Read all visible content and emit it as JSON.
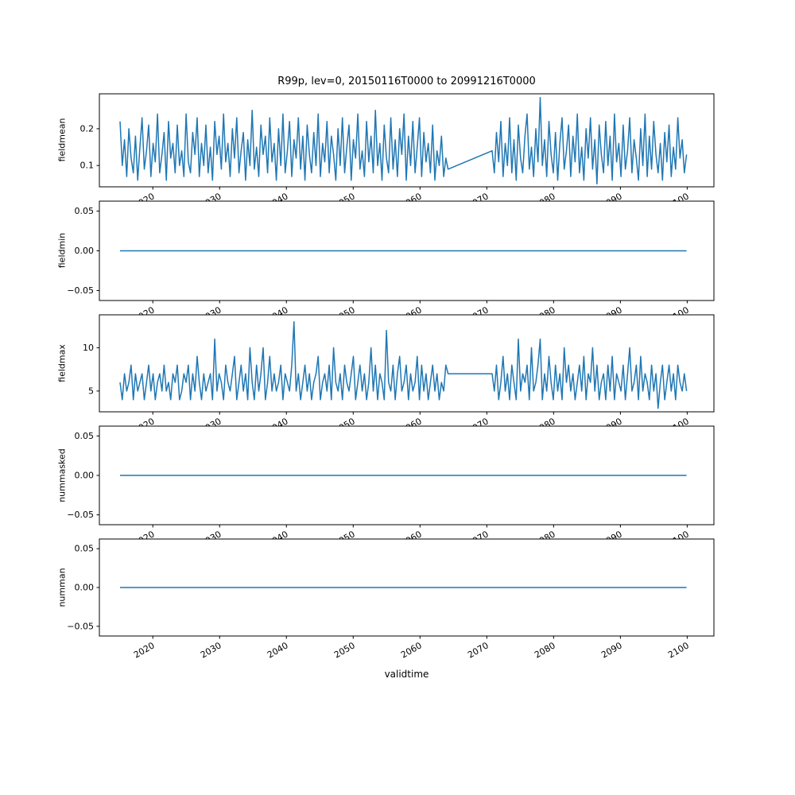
{
  "figure": {
    "background": "#ffffff"
  },
  "chart_data": {
    "type": "line",
    "title": "R99p, lev=0, 20150116T0000 to 20991216T0000",
    "xlabel": "validtime",
    "line_color": "#1f77b4",
    "grid": false,
    "legend": "none",
    "xlim": [
      2012,
      2104
    ],
    "xticks": [
      2020,
      2030,
      2040,
      2050,
      2060,
      2070,
      2080,
      2090,
      2100
    ],
    "xtick_labels": [
      "2020",
      "2030",
      "2040",
      "2050",
      "2060",
      "2070",
      "2080",
      "2090",
      "2100"
    ],
    "subplots": [
      {
        "ylabel": "fieldmean",
        "ylim": [
          0.042,
          0.295
        ],
        "yticks": [
          0.1,
          0.2
        ],
        "ytick_labels": [
          "0.1",
          "0.2"
        ],
        "segments": [
          {
            "x_start": 2015.1,
            "x_end": 2064.2,
            "values": [
              0.22,
              0.1,
              0.17,
              0.07,
              0.2,
              0.12,
              0.08,
              0.18,
              0.06,
              0.15,
              0.23,
              0.09,
              0.14,
              0.21,
              0.07,
              0.16,
              0.11,
              0.24,
              0.08,
              0.13,
              0.19,
              0.06,
              0.22,
              0.12,
              0.16,
              0.08,
              0.21,
              0.1,
              0.14,
              0.07,
              0.24,
              0.11,
              0.08,
              0.19,
              0.13,
              0.23,
              0.07,
              0.16,
              0.1,
              0.21,
              0.08,
              0.15,
              0.06,
              0.22,
              0.13,
              0.18,
              0.09,
              0.24,
              0.11,
              0.16,
              0.07,
              0.2,
              0.12,
              0.23,
              0.08,
              0.14,
              0.19,
              0.06,
              0.17,
              0.1,
              0.25,
              0.09,
              0.15,
              0.07,
              0.21,
              0.13,
              0.18,
              0.08,
              0.23,
              0.11,
              0.16,
              0.06,
              0.2,
              0.1,
              0.24,
              0.08,
              0.14,
              0.22,
              0.07,
              0.17,
              0.12,
              0.23,
              0.09,
              0.18,
              0.06,
              0.21,
              0.13,
              0.08,
              0.19,
              0.1,
              0.24,
              0.07,
              0.16,
              0.11,
              0.22,
              0.08,
              0.18,
              0.13,
              0.06,
              0.2,
              0.1,
              0.23,
              0.08,
              0.15,
              0.21,
              0.06,
              0.17,
              0.12,
              0.24,
              0.09,
              0.14,
              0.07,
              0.22,
              0.11,
              0.18,
              0.08,
              0.25,
              0.1,
              0.16,
              0.06,
              0.21,
              0.12,
              0.08,
              0.23,
              0.09,
              0.17,
              0.07,
              0.2,
              0.13,
              0.24,
              0.06,
              0.18,
              0.1,
              0.22,
              0.08,
              0.15,
              0.23,
              0.07,
              0.19,
              0.11,
              0.16,
              0.08,
              0.21,
              0.06,
              0.14,
              0.1,
              0.18,
              0.07,
              0.12,
              0.09
            ]
          },
          {
            "x_start": 2070.8,
            "x_end": 2099.9,
            "values": [
              0.14,
              0.08,
              0.19,
              0.11,
              0.22,
              0.07,
              0.16,
              0.1,
              0.23,
              0.08,
              0.17,
              0.06,
              0.21,
              0.12,
              0.08,
              0.18,
              0.24,
              0.09,
              0.15,
              0.07,
              0.2,
              0.11,
              0.285,
              0.1,
              0.17,
              0.07,
              0.22,
              0.13,
              0.08,
              0.19,
              0.06,
              0.16,
              0.23,
              0.09,
              0.14,
              0.21,
              0.07,
              0.18,
              0.11,
              0.24,
              0.08,
              0.15,
              0.06,
              0.2,
              0.12,
              0.23,
              0.09,
              0.17,
              0.05,
              0.21,
              0.13,
              0.08,
              0.22,
              0.1,
              0.18,
              0.06,
              0.24,
              0.11,
              0.16,
              0.07,
              0.21,
              0.09,
              0.14,
              0.23,
              0.08,
              0.17,
              0.12,
              0.06,
              0.2,
              0.1,
              0.24,
              0.07,
              0.18,
              0.09,
              0.22,
              0.13,
              0.08,
              0.16,
              0.06,
              0.19,
              0.11,
              0.21,
              0.07,
              0.15,
              0.09,
              0.23,
              0.12,
              0.17,
              0.08,
              0.13
            ]
          }
        ]
      },
      {
        "ylabel": "fieldmin",
        "ylim": [
          -0.0625,
          0.0625
        ],
        "yticks": [
          -0.05,
          0.0,
          0.05
        ],
        "ytick_labels": [
          "−0.05",
          "0.00",
          "0.05"
        ],
        "segments": [
          {
            "x_start": 2015.1,
            "x_end": 2099.9,
            "values": [
              0,
              0
            ]
          }
        ]
      },
      {
        "ylabel": "fieldmax",
        "ylim": [
          2.6,
          13.8
        ],
        "yticks": [
          5,
          10
        ],
        "ytick_labels": [
          "5",
          "10"
        ],
        "segments": [
          {
            "x_start": 2015.1,
            "x_end": 2064.2,
            "values": [
              6,
              4,
              7,
              5,
              6,
              8,
              4,
              7,
              5,
              6,
              7,
              4,
              6,
              8,
              5,
              7,
              4,
              6,
              7,
              5,
              8,
              5,
              6,
              4,
              7,
              6,
              8,
              4,
              5,
              7,
              6,
              8,
              4,
              7,
              5,
              9,
              6,
              4,
              7,
              5,
              6,
              7,
              4,
              11,
              5,
              7,
              6,
              4,
              8,
              6,
              5,
              7,
              9,
              4,
              6,
              8,
              5,
              7,
              4,
              10,
              6,
              4,
              8,
              5,
              7,
              10,
              4,
              6,
              9,
              5,
              7,
              5,
              6,
              8,
              4,
              7,
              6,
              5,
              8,
              13,
              5,
              7,
              4,
              6,
              8,
              5,
              7,
              4,
              6,
              7,
              9,
              4,
              6,
              7,
              5,
              8,
              4,
              10,
              6,
              5,
              7,
              4,
              8,
              6,
              5,
              7,
              9,
              4,
              6,
              8,
              5,
              7,
              4,
              6,
              10,
              5,
              8,
              4,
              7,
              6,
              4,
              12,
              6,
              5,
              8,
              4,
              7,
              9,
              5,
              6,
              8,
              4,
              7,
              5,
              6,
              9,
              4,
              8,
              5,
              7,
              4,
              6,
              8,
              5,
              7,
              4,
              6,
              5,
              8,
              7
            ]
          },
          {
            "x_start": 2070.8,
            "x_end": 2099.9,
            "values": [
              7,
              5,
              8,
              4,
              6,
              9,
              5,
              7,
              4,
              8,
              6,
              4,
              11,
              5,
              7,
              6,
              8,
              4,
              10,
              5,
              6,
              8,
              11,
              4,
              7,
              5,
              9,
              6,
              4,
              8,
              5,
              7,
              4,
              10,
              6,
              8,
              5,
              7,
              4,
              6,
              8,
              5,
              9,
              4,
              7,
              6,
              10,
              5,
              8,
              4,
              6,
              7,
              4,
              8,
              5,
              9,
              4,
              7,
              6,
              5,
              8,
              4,
              7,
              10,
              5,
              6,
              8,
              4,
              9,
              5,
              7,
              6,
              4,
              8,
              5,
              7,
              3,
              6,
              8,
              4,
              6,
              8,
              5,
              7,
              4,
              8,
              6,
              5,
              7,
              5
            ]
          }
        ]
      },
      {
        "ylabel": "nummasked",
        "ylim": [
          -0.0625,
          0.0625
        ],
        "yticks": [
          -0.05,
          0.0,
          0.05
        ],
        "ytick_labels": [
          "−0.05",
          "0.00",
          "0.05"
        ],
        "segments": [
          {
            "x_start": 2015.1,
            "x_end": 2099.9,
            "values": [
              0,
              0
            ]
          }
        ]
      },
      {
        "ylabel": "numman",
        "ylim": [
          -0.0625,
          0.0625
        ],
        "yticks": [
          -0.05,
          0.0,
          0.05
        ],
        "ytick_labels": [
          "−0.05",
          "0.00",
          "0.05"
        ],
        "segments": [
          {
            "x_start": 2015.1,
            "x_end": 2099.9,
            "values": [
              0,
              0
            ]
          }
        ]
      }
    ]
  }
}
